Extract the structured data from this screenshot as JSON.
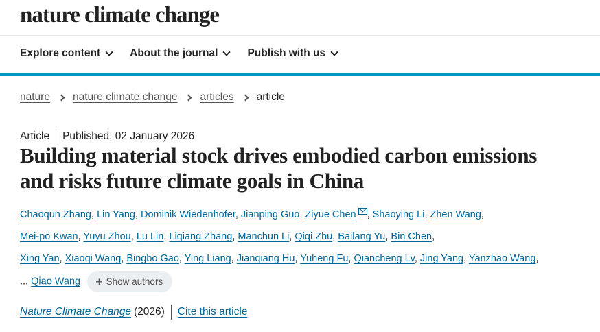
{
  "header": {
    "logo": "nature climate change"
  },
  "nav": [
    {
      "label": "Explore content"
    },
    {
      "label": "About the journal"
    },
    {
      "label": "Publish with us"
    }
  ],
  "breadcrumb": [
    "nature",
    "nature climate change",
    "articles",
    "article"
  ],
  "article": {
    "type": "Article",
    "published": "Published: 02 January 2026",
    "title": "Building material stock drives embodied carbon emissions and risks future climate goals in China",
    "authors": [
      "Chaoqun Zhang",
      "Lin Yang",
      "Dominik Wiedenhofer",
      "Jianping Guo",
      "Ziyue Chen",
      "Shaoying Li",
      "Zhen Wang",
      "Mei-po Kwan",
      "Yuyu Zhou",
      "Lu Lin",
      "Liqiang Zhang",
      "Manchun Li",
      "Qiqi Zhu",
      "Bailang Yu",
      "Bin Chen",
      "Xing Yan",
      "Xiaoqi Wang",
      "Bingbo Gao",
      "Ying Liang",
      "Jianqiang Hu",
      "Yuheng Fu",
      "Qiancheng Lv",
      "Jing Yang",
      "Yanzhao Wang"
    ],
    "corresponding_author": "Ziyue Chen",
    "ellipsis": "...",
    "last_author": "Qiao Wang",
    "show_authors": "Show authors",
    "journal": "Nature Climate Change",
    "year": "(2026)",
    "cite": "Cite this article"
  },
  "colors": {
    "accent_bar": "#0099c1",
    "link": "#006699"
  }
}
